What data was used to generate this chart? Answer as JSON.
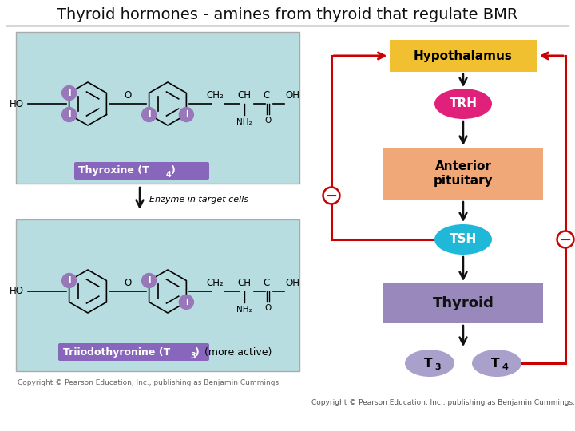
{
  "title": "Thyroid hormones - amines from thyroid that regulate BMR",
  "title_color": "#111111",
  "title_fontsize": 14,
  "bg_color": "#ffffff",
  "left_panel_bg": "#b8dde0",
  "left_panel_border": "#aaaaaa",
  "box_label_bg": "#8866bb",
  "box_label_color": "#ffffff",
  "iodine_color": "#9977bb",
  "iodine_text": "#ffffff",
  "hypo_box_color": "#f0c030",
  "hypo_text": "Hypothalamus",
  "hypo_text_color": "#000000",
  "trh_color": "#e0207a",
  "trh_text": "TRH",
  "trh_text_color": "#ffffff",
  "ant_pit_color": "#f0a878",
  "ant_pit_text": "Anterior\npituitary",
  "ant_pit_text_color": "#000000",
  "tsh_color": "#20b8d8",
  "tsh_text": "TSH",
  "tsh_text_color": "#ffffff",
  "thyroid_color": "#9988bb",
  "thyroid_text": "Thyroid",
  "thyroid_text_color": "#111111",
  "t_oval_color": "#aaa0cc",
  "feedback_color": "#cc0000",
  "feedback_lw": 2.2,
  "neg_sign_color": "#cc0000",
  "arrow_color": "#111111",
  "arrow_lw": 1.8,
  "copyright_left": "Copyright © Pearson Education, Inc., publishing as Benjamin Cummings.",
  "copyright_right": "Copyright © Pearson Education, Inc., publishing as Benjamin Cummings.",
  "copyright_fontsize": 6.5
}
